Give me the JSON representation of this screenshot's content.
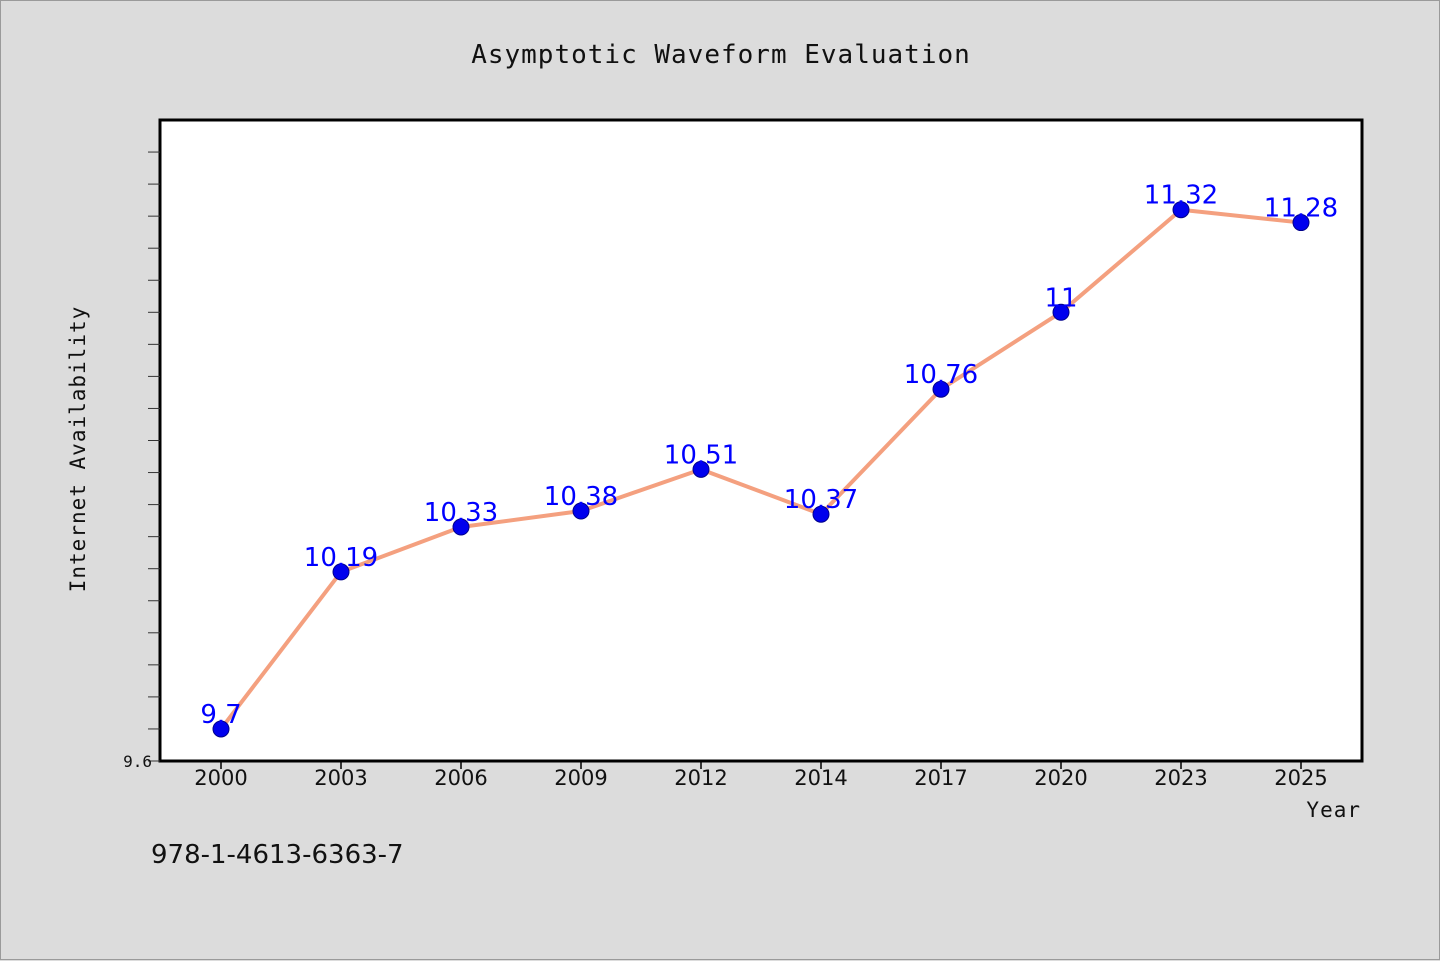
{
  "chart_data": {
    "type": "line",
    "title": "Asymptotic Waveform Evaluation",
    "xlabel": "Year",
    "ylabel": "Internet Availability",
    "categories": [
      "2000",
      "2003",
      "2006",
      "2009",
      "2012",
      "2014",
      "2017",
      "2020",
      "2023",
      "2025"
    ],
    "series": [
      {
        "values": [
          9.7,
          10.19,
          10.33,
          10.38,
          10.51,
          10.37,
          10.76,
          11,
          11.32,
          11.28
        ],
        "labels": [
          "9.7",
          "10.19",
          "10.33",
          "10.38",
          "10.51",
          "10.37",
          "10.76",
          "11",
          "11.32",
          "11.28"
        ]
      }
    ],
    "ylim": [
      9.6,
      11.6
    ],
    "yticks_labeled": [
      "9.6"
    ],
    "ytick_step": 0.1,
    "grid": false,
    "line_color": "#f4a07f",
    "marker_color": "#0000ee",
    "label_color": "#0000ff"
  },
  "footnote": "978-1-4613-6363-7"
}
